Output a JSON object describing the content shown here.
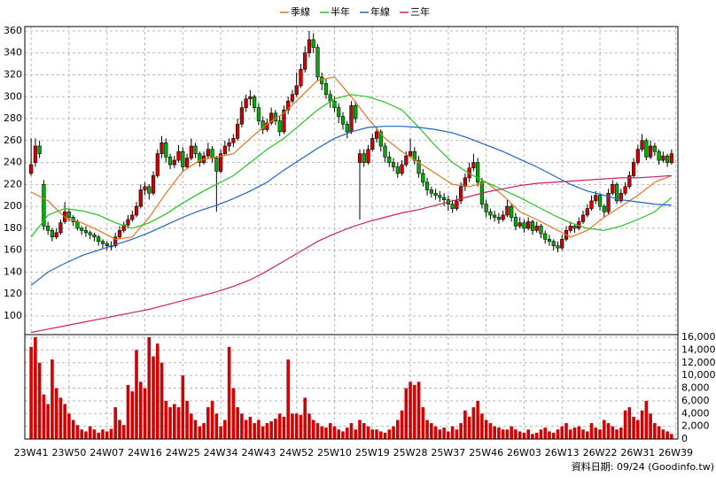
{
  "chart_data": {
    "type": "candlestick",
    "legend_position": "top",
    "grid": true,
    "up_color": "#d40000",
    "down_color": "#00b000",
    "xlim": [
      -1.5,
      153.5
    ],
    "xticks": [
      {
        "value": 0,
        "label": "23W41"
      },
      {
        "value": 9,
        "label": "23W50"
      },
      {
        "value": 18,
        "label": "24W07"
      },
      {
        "value": 27,
        "label": "24W16"
      },
      {
        "value": 36,
        "label": "24W25"
      },
      {
        "value": 45,
        "label": "24W34"
      },
      {
        "value": 54,
        "label": "24W43"
      },
      {
        "value": 63,
        "label": "24W52"
      },
      {
        "value": 72,
        "label": "25W10"
      },
      {
        "value": 81,
        "label": "25W19"
      },
      {
        "value": 90,
        "label": "25W28"
      },
      {
        "value": 99,
        "label": "25W37"
      },
      {
        "value": 108,
        "label": "25W46"
      },
      {
        "value": 117,
        "label": "26W03"
      },
      {
        "value": 126,
        "label": "26W13"
      },
      {
        "value": 135,
        "label": "26W22"
      },
      {
        "value": 144,
        "label": "26W31"
      },
      {
        "value": 153,
        "label": "26W39"
      }
    ],
    "ylim": [
      83,
      364
    ],
    "yticks": [
      100,
      120,
      140,
      160,
      180,
      200,
      220,
      240,
      260,
      280,
      300,
      320,
      340,
      360
    ],
    "volume_ylim": [
      0,
      16000
    ],
    "volume_color": "#d40000",
    "volume_yticks": [
      0,
      {
        "value": 2000,
        "label": "2,000"
      },
      {
        "value": 4000,
        "label": "4,000"
      },
      {
        "value": 6000,
        "label": "6,000"
      },
      {
        "value": 8000,
        "label": "8,000"
      },
      {
        "value": 10000,
        "label": "10,000"
      },
      {
        "value": 12000,
        "label": "12,000"
      },
      {
        "value": 14000,
        "label": "14,000"
      },
      {
        "value": 16000,
        "label": "16,000"
      }
    ],
    "note": "資料日期: 09/24  (Goodinfo.tw)",
    "candles": [
      [
        230,
        262,
        228,
        238
      ],
      [
        240,
        262,
        236,
        255
      ],
      [
        255,
        260,
        244,
        248
      ],
      [
        220,
        224,
        178,
        182
      ],
      [
        182,
        186,
        174,
        178
      ],
      [
        178,
        180,
        168,
        172
      ],
      [
        172,
        180,
        170,
        176
      ],
      [
        176,
        188,
        174,
        185
      ],
      [
        186,
        204,
        184,
        195
      ],
      [
        195,
        198,
        186,
        190
      ],
      [
        190,
        192,
        182,
        186
      ],
      [
        186,
        188,
        178,
        180
      ],
      [
        180,
        182,
        174,
        178
      ],
      [
        178,
        182,
        172,
        176
      ],
      [
        176,
        178,
        170,
        174
      ],
      [
        174,
        176,
        168,
        172
      ],
      [
        172,
        174,
        164,
        168
      ],
      [
        168,
        170,
        162,
        166
      ],
      [
        166,
        168,
        160,
        164
      ],
      [
        164,
        168,
        160,
        163
      ],
      [
        164,
        176,
        162,
        172
      ],
      [
        172,
        182,
        170,
        178
      ],
      [
        178,
        186,
        176,
        183
      ],
      [
        183,
        192,
        180,
        188
      ],
      [
        188,
        196,
        186,
        192
      ],
      [
        192,
        204,
        190,
        200
      ],
      [
        200,
        220,
        198,
        215
      ],
      [
        215,
        222,
        210,
        218
      ],
      [
        218,
        220,
        206,
        212
      ],
      [
        212,
        232,
        210,
        228
      ],
      [
        228,
        252,
        226,
        248
      ],
      [
        248,
        264,
        244,
        258
      ],
      [
        258,
        262,
        240,
        245
      ],
      [
        245,
        248,
        234,
        238
      ],
      [
        238,
        246,
        235,
        242
      ],
      [
        242,
        256,
        240,
        250
      ],
      [
        250,
        254,
        232,
        236
      ],
      [
        236,
        248,
        234,
        244
      ],
      [
        244,
        262,
        242,
        255
      ],
      [
        255,
        258,
        244,
        248
      ],
      [
        248,
        250,
        236,
        240
      ],
      [
        240,
        250,
        238,
        246
      ],
      [
        246,
        258,
        244,
        252
      ],
      [
        252,
        255,
        240,
        244
      ],
      [
        244,
        246,
        195,
        232
      ],
      [
        232,
        252,
        230,
        248
      ],
      [
        248,
        260,
        246,
        255
      ],
      [
        255,
        262,
        250,
        258
      ],
      [
        258,
        266,
        254,
        262
      ],
      [
        262,
        280,
        260,
        275
      ],
      [
        275,
        296,
        272,
        290
      ],
      [
        290,
        302,
        286,
        298
      ],
      [
        298,
        306,
        292,
        300
      ],
      [
        300,
        302,
        286,
        290
      ],
      [
        290,
        294,
        274,
        278
      ],
      [
        278,
        282,
        266,
        270
      ],
      [
        270,
        280,
        268,
        276
      ],
      [
        276,
        290,
        274,
        285
      ],
      [
        285,
        288,
        274,
        278
      ],
      [
        278,
        282,
        264,
        268
      ],
      [
        268,
        292,
        266,
        288
      ],
      [
        288,
        300,
        284,
        296
      ],
      [
        296,
        306,
        294,
        302
      ],
      [
        302,
        322,
        300,
        310
      ],
      [
        310,
        330,
        308,
        325
      ],
      [
        325,
        346,
        322,
        340
      ],
      [
        340,
        360,
        336,
        352
      ],
      [
        352,
        358,
        340,
        345
      ],
      [
        345,
        348,
        314,
        318
      ],
      [
        318,
        322,
        306,
        312
      ],
      [
        312,
        316,
        298,
        302
      ],
      [
        302,
        306,
        290,
        296
      ],
      [
        296,
        300,
        286,
        290
      ],
      [
        290,
        294,
        276,
        282
      ],
      [
        282,
        286,
        270,
        275
      ],
      [
        275,
        278,
        262,
        268
      ],
      [
        268,
        296,
        266,
        292
      ],
      [
        292,
        296,
        276,
        280
      ],
      [
        240,
        252,
        188,
        248
      ],
      [
        248,
        252,
        236,
        240
      ],
      [
        240,
        256,
        238,
        252
      ],
      [
        252,
        266,
        250,
        262
      ],
      [
        262,
        272,
        258,
        268
      ],
      [
        268,
        270,
        250,
        255
      ],
      [
        255,
        258,
        240,
        245
      ],
      [
        245,
        250,
        236,
        240
      ],
      [
        240,
        244,
        232,
        236
      ],
      [
        236,
        240,
        226,
        230
      ],
      [
        230,
        242,
        228,
        238
      ],
      [
        238,
        250,
        236,
        246
      ],
      [
        246,
        262,
        244,
        250
      ],
      [
        250,
        254,
        238,
        242
      ],
      [
        242,
        246,
        226,
        230
      ],
      [
        230,
        234,
        218,
        222
      ],
      [
        222,
        226,
        210,
        215
      ],
      [
        215,
        218,
        208,
        212
      ],
      [
        212,
        216,
        206,
        210
      ],
      [
        210,
        214,
        204,
        208
      ],
      [
        208,
        212,
        200,
        206
      ],
      [
        206,
        210,
        196,
        202
      ],
      [
        202,
        206,
        194,
        198
      ],
      [
        198,
        210,
        196,
        205
      ],
      [
        205,
        222,
        202,
        218
      ],
      [
        218,
        230,
        214,
        226
      ],
      [
        226,
        240,
        222,
        235
      ],
      [
        235,
        248,
        232,
        240
      ],
      [
        240,
        244,
        218,
        222
      ],
      [
        222,
        226,
        198,
        202
      ],
      [
        202,
        206,
        190,
        195
      ],
      [
        195,
        198,
        188,
        192
      ],
      [
        192,
        196,
        186,
        190
      ],
      [
        190,
        194,
        184,
        188
      ],
      [
        188,
        196,
        186,
        192
      ],
      [
        192,
        206,
        190,
        200
      ],
      [
        200,
        202,
        186,
        190
      ],
      [
        190,
        194,
        178,
        182
      ],
      [
        182,
        190,
        180,
        185
      ],
      [
        185,
        188,
        176,
        180
      ],
      [
        180,
        190,
        178,
        186
      ],
      [
        186,
        188,
        174,
        178
      ],
      [
        178,
        186,
        176,
        182
      ],
      [
        182,
        184,
        171,
        175
      ],
      [
        175,
        178,
        166,
        170
      ],
      [
        170,
        174,
        164,
        168
      ],
      [
        168,
        170,
        160,
        164
      ],
      [
        164,
        168,
        158,
        162
      ],
      [
        162,
        174,
        160,
        170
      ],
      [
        170,
        182,
        168,
        178
      ],
      [
        178,
        186,
        176,
        182
      ],
      [
        182,
        184,
        176,
        180
      ],
      [
        180,
        190,
        178,
        186
      ],
      [
        186,
        196,
        184,
        192
      ],
      [
        192,
        202,
        190,
        198
      ],
      [
        198,
        210,
        196,
        205
      ],
      [
        205,
        214,
        202,
        210
      ],
      [
        210,
        212,
        196,
        200
      ],
      [
        200,
        202,
        190,
        195
      ],
      [
        195,
        216,
        193,
        212
      ],
      [
        212,
        224,
        210,
        220
      ],
      [
        220,
        222,
        202,
        205
      ],
      [
        205,
        216,
        203,
        212
      ],
      [
        212,
        222,
        210,
        218
      ],
      [
        218,
        232,
        216,
        228
      ],
      [
        228,
        244,
        226,
        240
      ],
      [
        240,
        256,
        238,
        252
      ],
      [
        252,
        266,
        250,
        260
      ],
      [
        260,
        262,
        242,
        245
      ],
      [
        245,
        260,
        243,
        255
      ],
      [
        255,
        258,
        246,
        250
      ],
      [
        250,
        252,
        238,
        242
      ],
      [
        242,
        250,
        240,
        246
      ],
      [
        246,
        248,
        236,
        240
      ],
      [
        240,
        252,
        238,
        248
      ]
    ],
    "volume": [
      14500,
      16000,
      12000,
      7000,
      5500,
      12500,
      8000,
      6500,
      5500,
      4000,
      3000,
      2200,
      1500,
      1200,
      2000,
      1500,
      1000,
      1500,
      1200,
      1600,
      5000,
      3000,
      2200,
      8500,
      7500,
      14000,
      9000,
      8000,
      16000,
      13000,
      15000,
      12000,
      6000,
      5000,
      5500,
      5000,
      10000,
      6000,
      4000,
      3000,
      2000,
      2500,
      5000,
      6000,
      4000,
      2000,
      3000,
      14500,
      8000,
      5000,
      4000,
      3000,
      3500,
      2500,
      3000,
      2000,
      2500,
      2800,
      3200,
      4000,
      3500,
      12500,
      4000,
      4000,
      3800,
      6500,
      4000,
      3000,
      2500,
      2000,
      1800,
      2500,
      2000,
      1500,
      1200,
      1800,
      2500,
      1500,
      3000,
      2500,
      2000,
      1500,
      1500,
      1200,
      1000,
      1500,
      2000,
      3000,
      4500,
      8000,
      9000,
      8500,
      9000,
      5000,
      3000,
      2500,
      2000,
      1500,
      1800,
      1200,
      2000,
      1500,
      2500,
      4500,
      3500,
      5000,
      6000,
      4000,
      3000,
      2500,
      2000,
      1800,
      1500,
      1500,
      2000,
      1500,
      1200,
      1000,
      1500,
      800,
      1000,
      1500,
      1800,
      1200,
      1000,
      1500,
      2000,
      2500,
      1500,
      1800,
      2000,
      1500,
      1200,
      2500,
      1800,
      1500,
      3000,
      2500,
      2000,
      1500,
      1800,
      4500,
      5000,
      3500,
      3000,
      4500,
      6000,
      4000,
      2500,
      2000,
      1500,
      1200,
      800
    ],
    "line_x": [
      0,
      4,
      8,
      12,
      16,
      20,
      24,
      28,
      32,
      36,
      40,
      44,
      48,
      52,
      56,
      60,
      64,
      68,
      72,
      76,
      80,
      84,
      88,
      92,
      96,
      100,
      104,
      108,
      112,
      116,
      120,
      124,
      128,
      132,
      136,
      140,
      144,
      148,
      152
    ],
    "series": [
      {
        "name": "季線",
        "color": "#e8741c",
        "values": [
          213,
          205,
          190,
          185,
          178,
          170,
          172,
          190,
          212,
          232,
          242,
          245,
          248,
          262,
          275,
          285,
          300,
          315,
          318,
          300,
          280,
          262,
          250,
          240,
          230,
          220,
          218,
          222,
          210,
          195,
          188,
          180,
          172,
          178,
          190,
          200,
          210,
          222,
          228
        ]
      },
      {
        "name": "半年",
        "color": "#22c422",
        "values": [
          172,
          192,
          198,
          196,
          192,
          185,
          180,
          185,
          193,
          203,
          212,
          220,
          228,
          240,
          252,
          262,
          275,
          288,
          298,
          302,
          300,
          295,
          288,
          272,
          255,
          240,
          230,
          222,
          215,
          208,
          200,
          192,
          185,
          180,
          178,
          182,
          188,
          195,
          208
        ]
      },
      {
        "name": "年線",
        "color": "#1e64c8",
        "values": [
          128,
          140,
          148,
          155,
          160,
          165,
          170,
          176,
          183,
          190,
          196,
          201,
          207,
          214,
          222,
          233,
          243,
          253,
          262,
          268,
          272,
          273,
          273,
          272,
          270,
          267,
          262,
          256,
          250,
          243,
          236,
          228,
          220,
          214,
          210,
          206,
          204,
          202,
          201
        ]
      },
      {
        "name": "三年",
        "color": "#d0206a",
        "values": [
          85,
          88,
          91,
          94,
          97,
          100,
          103,
          106,
          110,
          114,
          118,
          122,
          127,
          133,
          141,
          150,
          159,
          168,
          175,
          181,
          186,
          190,
          194,
          197,
          201,
          205,
          209,
          213,
          216,
          219,
          221,
          222,
          223,
          224,
          225,
          226,
          226,
          227,
          228
        ]
      }
    ]
  }
}
